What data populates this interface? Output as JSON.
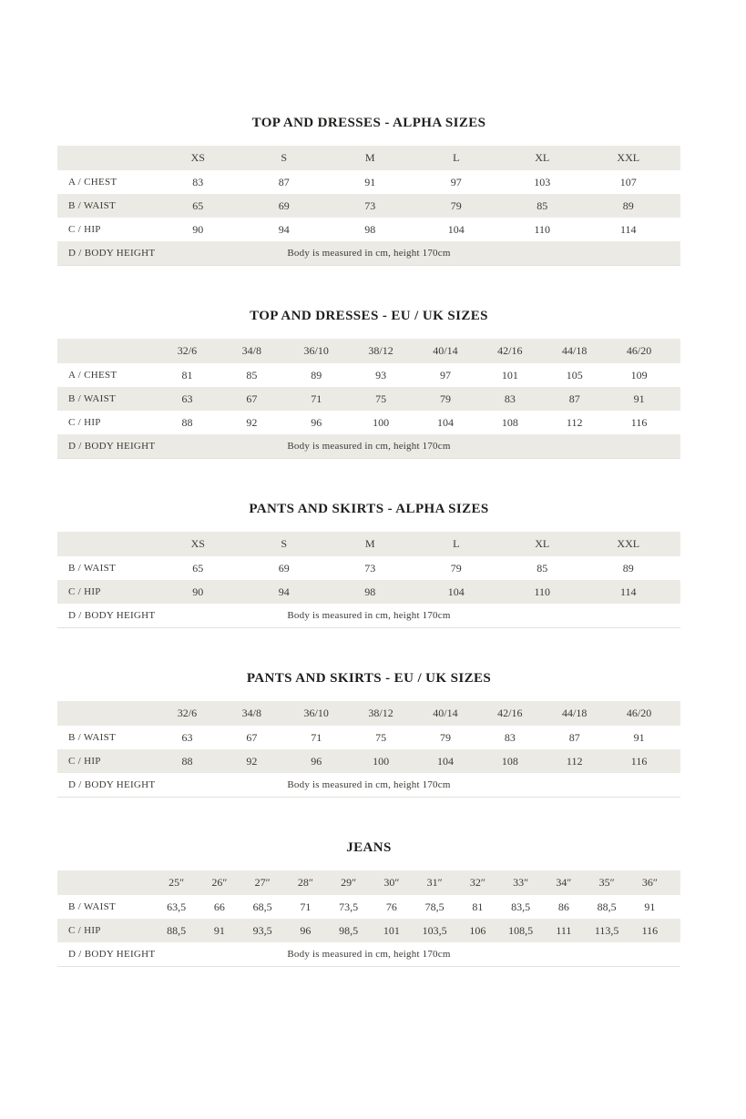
{
  "page": {
    "background": "#ffffff",
    "accent_row_bg": "#ECEAE5",
    "text_color": "#3C3A36",
    "title_color": "#1F1E1C"
  },
  "tables": [
    {
      "title": "TOP AND DRESSES - ALPHA SIZES",
      "columns": [
        "XS",
        "S",
        "M",
        "L",
        "XL",
        "XXL"
      ],
      "rows": [
        {
          "label": "A / CHEST",
          "values": [
            "83",
            "87",
            "91",
            "97",
            "103",
            "107"
          ]
        },
        {
          "label": "B / WAIST",
          "values": [
            "65",
            "69",
            "73",
            "79",
            "85",
            "89"
          ]
        },
        {
          "label": "C / HIP",
          "values": [
            "90",
            "94",
            "98",
            "104",
            "110",
            "114"
          ]
        }
      ],
      "note_row": {
        "label": "D / BODY HEIGHT",
        "note": "Body is measured in cm, height 170cm"
      }
    },
    {
      "title": "TOP AND DRESSES - EU / UK SIZES",
      "columns": [
        "32/6",
        "34/8",
        "36/10",
        "38/12",
        "40/14",
        "42/16",
        "44/18",
        "46/20"
      ],
      "rows": [
        {
          "label": "A / CHEST",
          "values": [
            "81",
            "85",
            "89",
            "93",
            "97",
            "101",
            "105",
            "109"
          ]
        },
        {
          "label": "B / WAIST",
          "values": [
            "63",
            "67",
            "71",
            "75",
            "79",
            "83",
            "87",
            "91"
          ]
        },
        {
          "label": "C / HIP",
          "values": [
            "88",
            "92",
            "96",
            "100",
            "104",
            "108",
            "112",
            "116"
          ]
        }
      ],
      "note_row": {
        "label": "D / BODY HEIGHT",
        "note": "Body is measured in cm, height 170cm"
      }
    },
    {
      "title": "PANTS AND SKIRTS - ALPHA SIZES",
      "columns": [
        "XS",
        "S",
        "M",
        "L",
        "XL",
        "XXL"
      ],
      "rows": [
        {
          "label": "B / WAIST",
          "values": [
            "65",
            "69",
            "73",
            "79",
            "85",
            "89"
          ]
        },
        {
          "label": "C / HIP",
          "values": [
            "90",
            "94",
            "98",
            "104",
            "110",
            "114"
          ]
        }
      ],
      "note_row": {
        "label": "D / BODY HEIGHT",
        "note": "Body is measured in cm, height 170cm"
      }
    },
    {
      "title": "PANTS AND SKIRTS - EU / UK SIZES",
      "columns": [
        "32/6",
        "34/8",
        "36/10",
        "38/12",
        "40/14",
        "42/16",
        "44/18",
        "46/20"
      ],
      "rows": [
        {
          "label": "B / WAIST",
          "values": [
            "63",
            "67",
            "71",
            "75",
            "79",
            "83",
            "87",
            "91"
          ]
        },
        {
          "label": "C / HIP",
          "values": [
            "88",
            "92",
            "96",
            "100",
            "104",
            "108",
            "112",
            "116"
          ]
        }
      ],
      "note_row": {
        "label": "D / BODY HEIGHT",
        "note": "Body is measured in cm, height 170cm"
      }
    },
    {
      "title": "JEANS",
      "columns": [
        "25″",
        "26″",
        "27″",
        "28″",
        "29″",
        "30″",
        "31″",
        "32″",
        "33″",
        "34″",
        "35″",
        "36″"
      ],
      "rows": [
        {
          "label": "B / WAIST",
          "values": [
            "63,5",
            "66",
            "68,5",
            "71",
            "73,5",
            "76",
            "78,5",
            "81",
            "83,5",
            "86",
            "88,5",
            "91"
          ]
        },
        {
          "label": "C / HIP",
          "values": [
            "88,5",
            "91",
            "93,5",
            "96",
            "98,5",
            "101",
            "103,5",
            "106",
            "108,5",
            "111",
            "113,5",
            "116"
          ]
        }
      ],
      "note_row": {
        "label": "D / BODY HEIGHT",
        "note": "Body is measured in cm, height 170cm"
      }
    }
  ]
}
